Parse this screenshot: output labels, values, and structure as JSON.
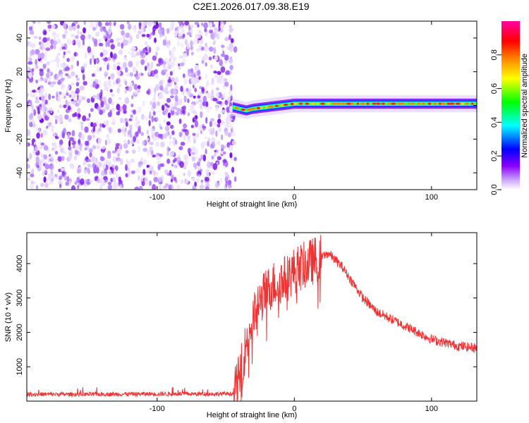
{
  "title": "C2E1.2026.017.09.38.E19",
  "chart_data": [
    {
      "type": "heatmap",
      "xlabel": "Height of straight line (km)",
      "ylabel": "Frequency (Hz)",
      "xlim": [
        -195,
        133
      ],
      "ylim": [
        -50,
        50
      ],
      "xticks": [
        -100,
        0,
        100
      ],
      "xtick_labels": [
        "-100",
        "0",
        "100"
      ],
      "yticks": [
        -40,
        -20,
        0,
        20,
        40
      ],
      "ytick_labels": [
        "-40",
        "-20",
        "0",
        "20",
        "40"
      ],
      "noise_region_x": [
        -195,
        -45
      ],
      "signal_line": {
        "x": [
          -45,
          -40,
          -35,
          -30,
          -20,
          -10,
          0,
          10,
          20,
          40,
          60,
          80,
          100,
          120,
          133
        ],
        "freq_hz": [
          -1,
          -2,
          -3,
          -2,
          -1,
          0,
          1,
          1,
          1,
          1,
          1,
          1,
          1,
          1,
          1
        ]
      },
      "colorbar": {
        "label": "Normalized spectral amplitude",
        "range": [
          0,
          1
        ],
        "ticks": [
          0.0,
          0.2,
          0.4,
          0.6,
          0.8
        ],
        "tick_labels": [
          "0.0",
          "0.2",
          "0.4",
          "0.6",
          "0.8"
        ],
        "colors": [
          "#ffffff",
          "#8b00ff",
          "#0000ff",
          "#00ffff",
          "#00ff00",
          "#ffff00",
          "#ff8000",
          "#ff0000",
          "#ff00a0"
        ]
      }
    },
    {
      "type": "line",
      "xlabel": "Height of straight line (km)",
      "ylabel": "SNR (10 * v/v)",
      "xlim": [
        -195,
        133
      ],
      "ylim": [
        0,
        4900
      ],
      "xticks": [
        -100,
        0,
        100
      ],
      "xtick_labels": [
        "-100",
        "0",
        "100"
      ],
      "yticks": [
        1000,
        2000,
        3000,
        4000
      ],
      "ytick_labels": [
        "1000",
        "2000",
        "3000",
        "4000"
      ],
      "color": "#ee3333",
      "series": [
        {
          "name": "SNR",
          "x": [
            -195,
            -150,
            -100,
            -60,
            -44,
            -40,
            -35,
            -30,
            -25,
            -20,
            -15,
            -10,
            -5,
            0,
            5,
            10,
            15,
            20,
            25,
            30,
            35,
            40,
            45,
            50,
            60,
            70,
            80,
            90,
            95,
            100,
            110,
            120,
            133
          ],
          "values": [
            200,
            200,
            210,
            210,
            220,
            700,
            1700,
            2400,
            2900,
            3200,
            3400,
            3500,
            3600,
            3800,
            3900,
            4000,
            4100,
            4200,
            4300,
            4100,
            3900,
            3600,
            3300,
            3000,
            2600,
            2400,
            2200,
            2000,
            1900,
            1800,
            1700,
            1600,
            1550
          ]
        }
      ]
    }
  ]
}
